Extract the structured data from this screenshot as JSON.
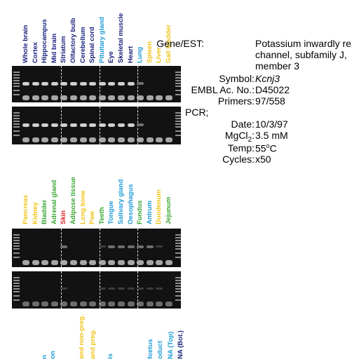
{
  "colors": {
    "navy": "#1a237e",
    "cyan": "#1e9bd7",
    "yellow": "#f0c419",
    "green": "#3aa632",
    "red": "#e3262a"
  },
  "panel1": {
    "lanes": [
      {
        "label": "Whole brain",
        "color": "navy",
        "band": "strong"
      },
      {
        "label": "Cortex",
        "color": "navy",
        "band": "strong"
      },
      {
        "label": "Hippocampus",
        "color": "navy",
        "band": "strong"
      },
      {
        "label": "Mid brain",
        "color": "navy",
        "band": "strong"
      },
      {
        "label": "Striatum",
        "color": "navy",
        "band": "strong"
      },
      {
        "label": "Olfactory bulb",
        "color": "navy",
        "band": "strong"
      },
      {
        "label": "Cerebellum",
        "color": "navy",
        "band": "strong"
      },
      {
        "label": "Spinal cord",
        "color": "navy",
        "band": "strong"
      },
      {
        "label": "Pituitary gland",
        "color": "cyan",
        "band": "strong"
      },
      {
        "label": "Eye",
        "color": "navy",
        "band": "strong"
      },
      {
        "label": "Skeletal muscle",
        "color": "navy",
        "band": "strong"
      },
      {
        "label": "Heart",
        "color": "navy",
        "band": "strong"
      },
      {
        "label": "Lung",
        "color": "cyan",
        "band": "weak"
      },
      {
        "label": "Spleen",
        "color": "yellow",
        "band": "none"
      },
      {
        "label": "Liver",
        "color": "yellow",
        "band": "none"
      },
      {
        "label": "Gall bladder",
        "color": "yellow",
        "band": "none"
      }
    ]
  },
  "panel2": {
    "lanes": [
      {
        "label": "Pancreas",
        "color": "yellow",
        "band": "none"
      },
      {
        "label": "Kidney",
        "color": "yellow",
        "band": "none"
      },
      {
        "label": "Bladder",
        "color": "green",
        "band": "none"
      },
      {
        "label": "Adrenal gland",
        "color": "green",
        "band": "none"
      },
      {
        "label": "Skin",
        "color": "red",
        "band": "weak"
      },
      {
        "label": "Adipose tissue",
        "color": "green",
        "band": "none"
      },
      {
        "label": "Long bone",
        "color": "yellow",
        "band": "none"
      },
      {
        "label": "Paw",
        "color": "yellow",
        "band": "none"
      },
      {
        "label": "Teeth",
        "color": "green",
        "band": "faint"
      },
      {
        "label": "Tongue",
        "color": "cyan",
        "band": "weak"
      },
      {
        "label": "Salivary gland",
        "color": "cyan",
        "band": "weak"
      },
      {
        "label": "Oesophagus",
        "color": "cyan",
        "band": "weak"
      },
      {
        "label": "Fundus",
        "color": "green",
        "band": "weak"
      },
      {
        "label": "Antrum",
        "color": "cyan",
        "band": "weak"
      },
      {
        "label": "Duodenum",
        "color": "yellow",
        "band": "faint"
      },
      {
        "label": "Jejunum",
        "color": "green",
        "band": "none"
      }
    ]
  },
  "panel3": {
    "lanes": [
      {
        "label": "n",
        "color": "cyan"
      },
      {
        "label": "on",
        "color": "cyan"
      },
      {
        "label": "",
        "color": "cyan"
      },
      {
        "label": "and non-preg.",
        "color": "yellow"
      },
      {
        "label": "and preg.",
        "color": "yellow"
      },
      {
        "label": "is",
        "color": "cyan"
      },
      {
        "label": "foetus",
        "color": "cyan"
      },
      {
        "label": "oduct",
        "color": "cyan"
      },
      {
        "label": "NA (Top)",
        "color": "cyan"
      },
      {
        "label": "NA (Bot.)",
        "color": "navy"
      }
    ]
  },
  "info": {
    "gene_label": "Gene/EST:",
    "gene_lines": [
      "Potassium inwardly re",
      "channel, subfamily J,",
      "member 3"
    ],
    "symbol_label": "Symbol:",
    "symbol": "Kcnj3",
    "embl_label": "EMBL Ac. No.:",
    "embl": "D45022",
    "primers_label": "Primers:",
    "primers": "97/558",
    "pcr_label": "PCR;",
    "date_label": "Date:",
    "date": "10/3/97",
    "mgcl2_label": "MgCl",
    "mgcl2_sub": "2",
    "mgcl2_colon": ":",
    "mgcl2": "3.5 mM",
    "temp_label": "Temp:",
    "temp_value": "55",
    "temp_sup": "o",
    "temp_unit": "C",
    "cycles_label": "Cycles:",
    "cycles": "x50"
  }
}
